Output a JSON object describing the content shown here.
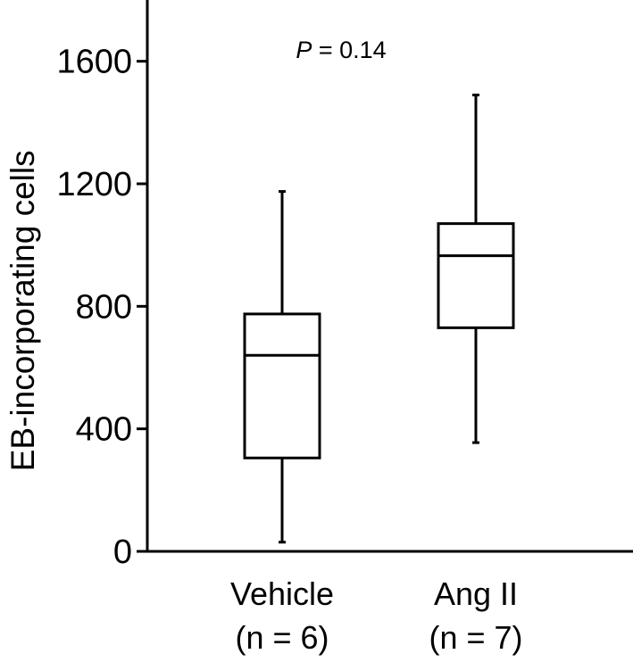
{
  "chart_data": {
    "type": "box",
    "ylabel": "EB-incorporating cells",
    "ylim": [
      0,
      1800
    ],
    "yticks": [
      0,
      400,
      800,
      1200,
      1600
    ],
    "annotation": {
      "italic": "P",
      "text": " = 0.14"
    },
    "categories": [
      {
        "name": "Vehicle",
        "n_label": "(n = 6)",
        "min": 30,
        "q1": 305,
        "median": 640,
        "q3": 775,
        "max": 1175
      },
      {
        "name": "Ang II",
        "n_label": "(n = 7)",
        "min": 355,
        "q1": 730,
        "median": 965,
        "q3": 1070,
        "max": 1490
      }
    ]
  }
}
